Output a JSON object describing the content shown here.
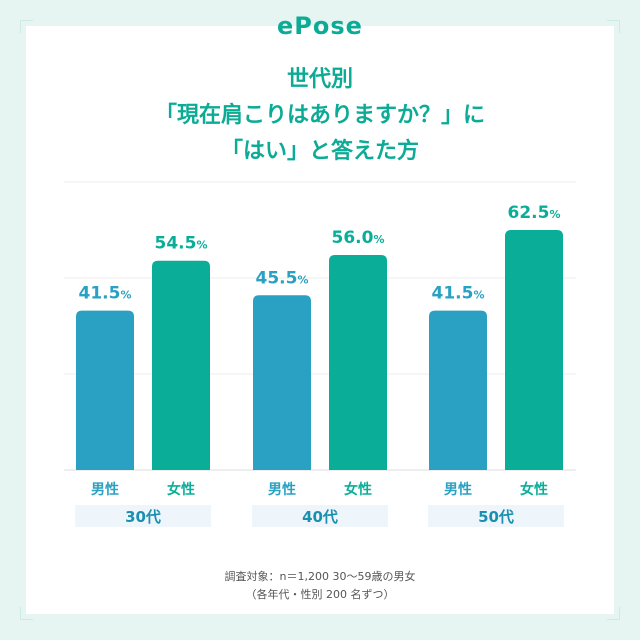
{
  "brand": {
    "logo": "ePose"
  },
  "title_lines": [
    "世代別",
    "「現在肩こりはありますか？」に",
    "「はい」と答えた方"
  ],
  "colors": {
    "male": "#2aa0c2",
    "female": "#0aae98",
    "accent": "#0cab96",
    "group_band": "#eef6fb"
  },
  "chart_data": {
    "type": "bar",
    "title": "世代別「現在肩こりはありますか？」に「はい」と答えた方",
    "groups": [
      "30代",
      "40代",
      "50代"
    ],
    "bar_labels": [
      "男性",
      "女性"
    ],
    "series": [
      {
        "name": "男性",
        "values": [
          41.5,
          45.5,
          41.5
        ]
      },
      {
        "name": "女性",
        "values": [
          54.5,
          56.0,
          62.5
        ]
      }
    ],
    "value_labels": [
      [
        "41.5",
        "54.5"
      ],
      [
        "45.5",
        "56.0"
      ],
      [
        "41.5",
        "62.5"
      ]
    ],
    "unit": "%",
    "ylim": [
      0,
      100
    ],
    "grid": true
  },
  "footnote": [
    "調査対象：n＝1,200 30〜59歳の男女",
    "（各年代・性別 200 名ずつ）"
  ]
}
